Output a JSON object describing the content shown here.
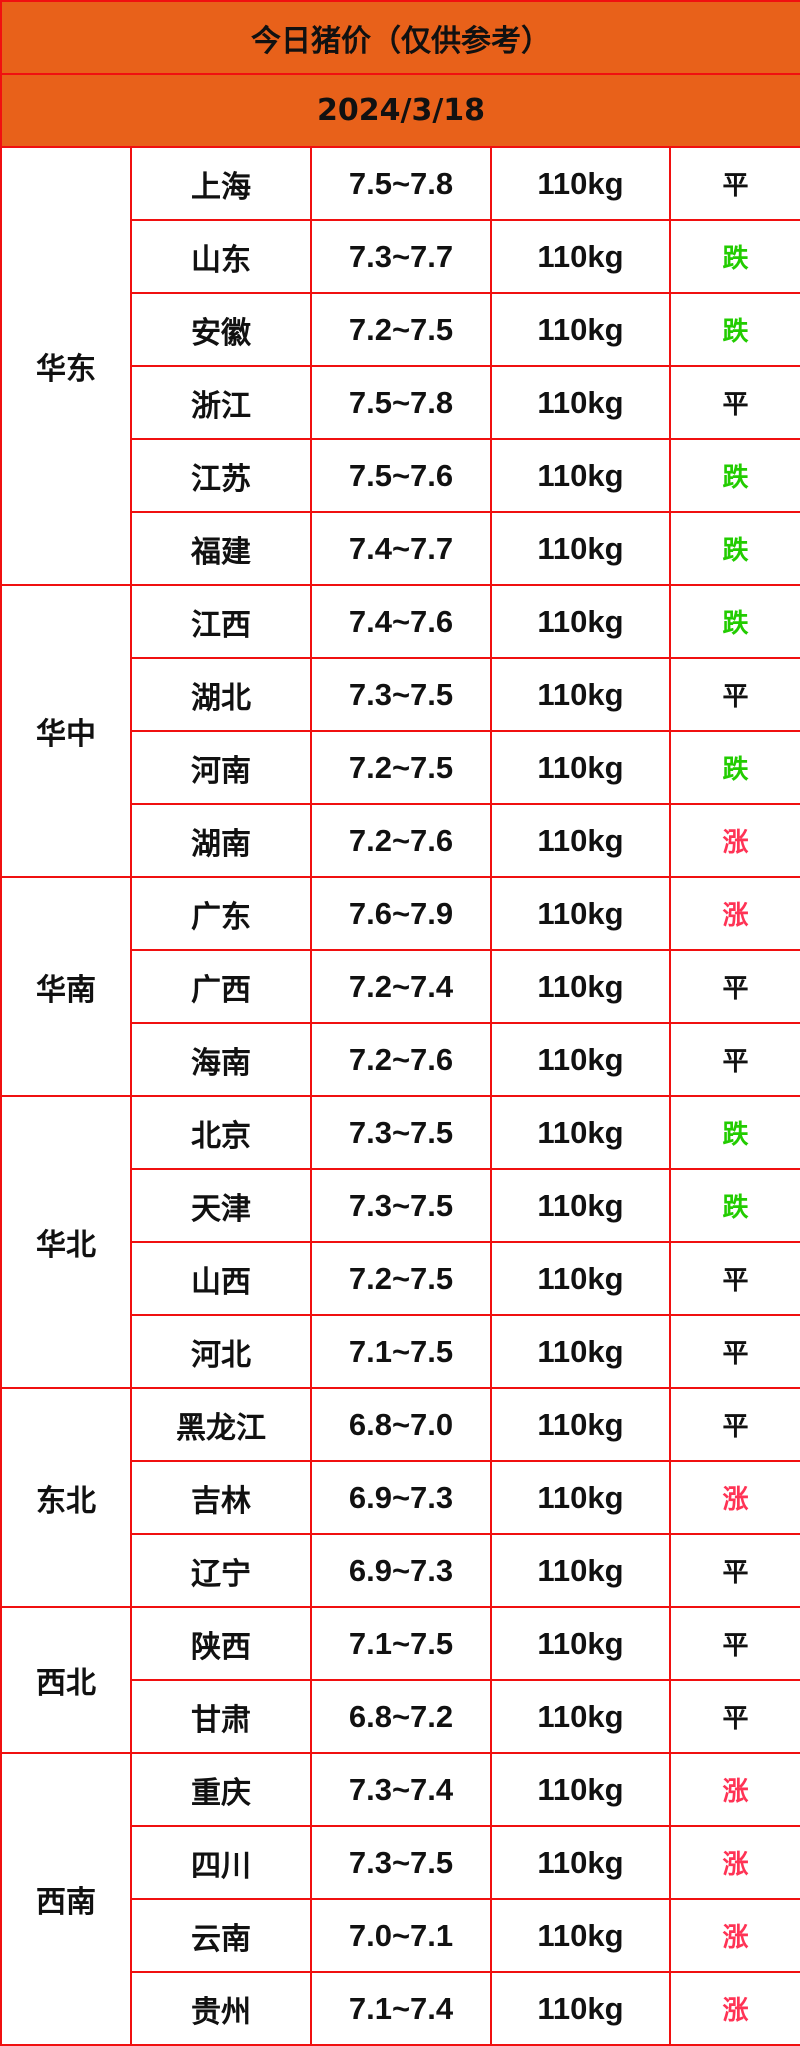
{
  "title": "今日猪价（仅供参考）",
  "date": "2024/3/18",
  "trend_colors": {
    "平": "#111111",
    "跌": "#22cc00",
    "涨": "#ff3355"
  },
  "regions": [
    {
      "name": "华东",
      "rows": [
        {
          "province": "上海",
          "price": "7.5~7.8",
          "weight": "110kg",
          "trend": "平"
        },
        {
          "province": "山东",
          "price": "7.3~7.7",
          "weight": "110kg",
          "trend": "跌"
        },
        {
          "province": "安徽",
          "price": "7.2~7.5",
          "weight": "110kg",
          "trend": "跌"
        },
        {
          "province": "浙江",
          "price": "7.5~7.8",
          "weight": "110kg",
          "trend": "平"
        },
        {
          "province": "江苏",
          "price": "7.5~7.6",
          "weight": "110kg",
          "trend": "跌"
        },
        {
          "province": "福建",
          "price": "7.4~7.7",
          "weight": "110kg",
          "trend": "跌"
        }
      ]
    },
    {
      "name": "华中",
      "rows": [
        {
          "province": "江西",
          "price": "7.4~7.6",
          "weight": "110kg",
          "trend": "跌"
        },
        {
          "province": "湖北",
          "price": "7.3~7.5",
          "weight": "110kg",
          "trend": "平"
        },
        {
          "province": "河南",
          "price": "7.2~7.5",
          "weight": "110kg",
          "trend": "跌"
        },
        {
          "province": "湖南",
          "price": "7.2~7.6",
          "weight": "110kg",
          "trend": "涨"
        }
      ]
    },
    {
      "name": "华南",
      "rows": [
        {
          "province": "广东",
          "price": "7.6~7.9",
          "weight": "110kg",
          "trend": "涨"
        },
        {
          "province": "广西",
          "price": "7.2~7.4",
          "weight": "110kg",
          "trend": "平"
        },
        {
          "province": "海南",
          "price": "7.2~7.6",
          "weight": "110kg",
          "trend": "平"
        }
      ]
    },
    {
      "name": "华北",
      "rows": [
        {
          "province": "北京",
          "price": "7.3~7.5",
          "weight": "110kg",
          "trend": "跌"
        },
        {
          "province": "天津",
          "price": "7.3~7.5",
          "weight": "110kg",
          "trend": "跌"
        },
        {
          "province": "山西",
          "price": "7.2~7.5",
          "weight": "110kg",
          "trend": "平"
        },
        {
          "province": "河北",
          "price": "7.1~7.5",
          "weight": "110kg",
          "trend": "平"
        }
      ]
    },
    {
      "name": "东北",
      "rows": [
        {
          "province": "黑龙江",
          "price": "6.8~7.0",
          "weight": "110kg",
          "trend": "平"
        },
        {
          "province": "吉林",
          "price": "6.9~7.3",
          "weight": "110kg",
          "trend": "涨"
        },
        {
          "province": "辽宁",
          "price": "6.9~7.3",
          "weight": "110kg",
          "trend": "平"
        }
      ]
    },
    {
      "name": "西北",
      "rows": [
        {
          "province": "陕西",
          "price": "7.1~7.5",
          "weight": "110kg",
          "trend": "平"
        },
        {
          "province": "甘肃",
          "price": "6.8~7.2",
          "weight": "110kg",
          "trend": "平"
        }
      ]
    },
    {
      "name": "西南",
      "rows": [
        {
          "province": "重庆",
          "price": "7.3~7.4",
          "weight": "110kg",
          "trend": "涨"
        },
        {
          "province": "四川",
          "price": "7.3~7.5",
          "weight": "110kg",
          "trend": "涨"
        },
        {
          "province": "云南",
          "price": "7.0~7.1",
          "weight": "110kg",
          "trend": "涨"
        },
        {
          "province": "贵州",
          "price": "7.1~7.4",
          "weight": "110kg",
          "trend": "涨"
        }
      ]
    }
  ]
}
